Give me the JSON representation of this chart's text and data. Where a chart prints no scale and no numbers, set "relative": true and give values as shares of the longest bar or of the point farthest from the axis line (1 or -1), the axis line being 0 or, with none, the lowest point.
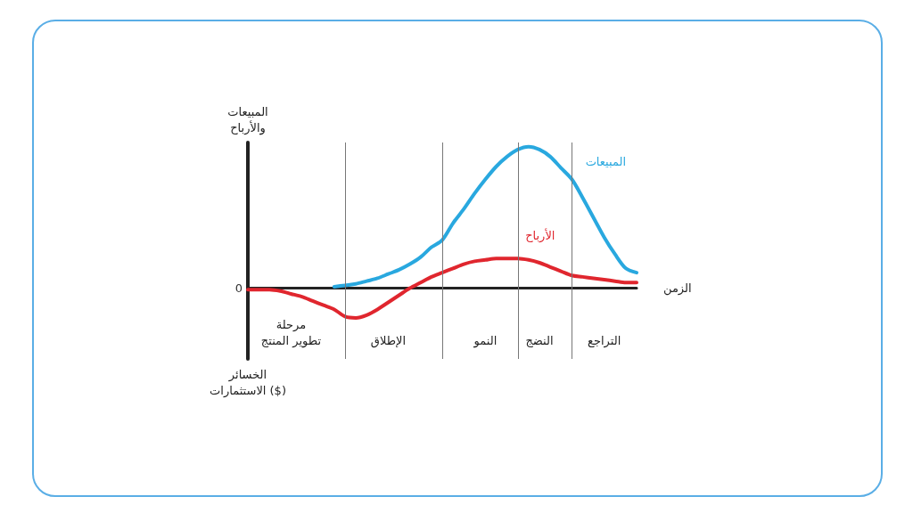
{
  "chart_data": {
    "type": "line",
    "relative": true,
    "ylabel": "المبيعات\nوالأرباح",
    "xlabel": "الزمن",
    "categories": [
      null,
      null,
      null,
      null,
      "مرحلة\nتطوير المنتج",
      null,
      null,
      null,
      null,
      null,
      null,
      null,
      null,
      "الإطلاق",
      null,
      null,
      null,
      null,
      null,
      null,
      null,
      null,
      "النمو",
      null,
      null,
      null,
      null,
      "النضج",
      null,
      null,
      null,
      null,
      null,
      "التراجع",
      null,
      null,
      null
    ],
    "series": [
      {
        "name": "المبيعات",
        "color": "#29a8df",
        "values": [
          null,
          null,
          null,
          null,
          null,
          null,
          null,
          null,
          0.01,
          0.02,
          0.03,
          0.05,
          0.07,
          0.1,
          0.13,
          0.17,
          0.22,
          0.29,
          0.34,
          0.46,
          0.56,
          0.67,
          0.77,
          0.86,
          0.93,
          0.98,
          1.0,
          0.98,
          0.93,
          0.85,
          0.77,
          0.64,
          0.5,
          0.36,
          0.24,
          0.14,
          0.11
        ]
      },
      {
        "name": "الأرباح",
        "color": "#e0262e",
        "values": [
          -0.01,
          -0.01,
          -0.01,
          -0.02,
          -0.04,
          -0.06,
          -0.09,
          -0.12,
          -0.15,
          -0.2,
          -0.21,
          -0.19,
          -0.15,
          -0.1,
          -0.05,
          0.0,
          0.04,
          0.08,
          0.11,
          0.14,
          0.17,
          0.19,
          0.2,
          0.21,
          0.21,
          0.21,
          0.2,
          0.18,
          0.15,
          0.12,
          0.09,
          0.08,
          0.07,
          0.06,
          0.05,
          0.04,
          0.04
        ]
      }
    ],
    "annotations": [
      "0",
      "الخسائر\nالاستثمارات ($)"
    ],
    "grid": "x",
    "legend": false,
    "marker": "none",
    "line_style": "solid"
  }
}
